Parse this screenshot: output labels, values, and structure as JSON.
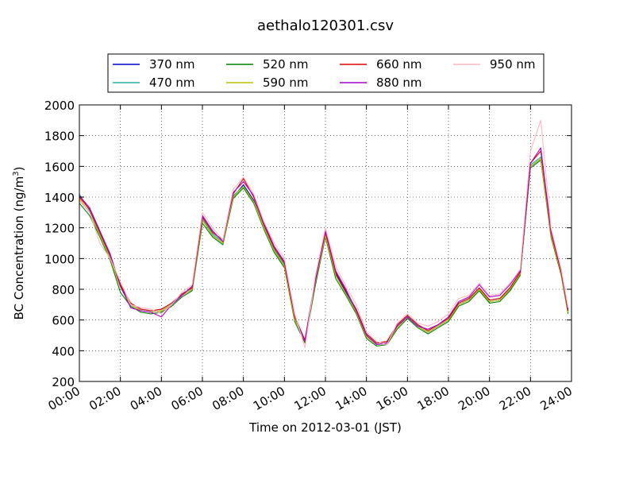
{
  "chart_data": {
    "type": "line",
    "title": "aethalo120301.csv",
    "xlabel": "Time on 2012-03-01 (JST)",
    "ylabel": "BC Concentration (ng/m",
    "ylabel_sup": "3",
    "ylabel_close": ")",
    "xlim": [
      "00:00",
      "24:00"
    ],
    "ylim": [
      200,
      2000
    ],
    "x_ticks": [
      "00:00",
      "02:00",
      "04:00",
      "06:00",
      "08:00",
      "10:00",
      "12:00",
      "14:00",
      "16:00",
      "18:00",
      "20:00",
      "22:00",
      "24:00"
    ],
    "y_ticks": [
      200,
      400,
      600,
      800,
      1000,
      1200,
      1400,
      1600,
      1800,
      2000
    ],
    "grid": true,
    "legend_position": "top",
    "x": [
      "00:00",
      "00:30",
      "01:00",
      "01:30",
      "02:00",
      "02:30",
      "03:00",
      "03:30",
      "04:00",
      "04:30",
      "05:00",
      "05:30",
      "06:00",
      "06:30",
      "07:00",
      "07:30",
      "08:00",
      "08:30",
      "09:00",
      "09:30",
      "10:00",
      "10:30",
      "11:00",
      "11:30",
      "12:00",
      "12:30",
      "13:00",
      "13:30",
      "14:00",
      "14:30",
      "15:00",
      "15:30",
      "16:00",
      "16:30",
      "17:00",
      "17:30",
      "18:00",
      "18:30",
      "19:00",
      "19:30",
      "20:00",
      "20:30",
      "21:00",
      "21:30",
      "22:00",
      "22:30",
      "23:00",
      "23:30",
      "23:50"
    ],
    "series": [
      {
        "name": "370 nm",
        "color": "#0000cc",
        "values": [
          1380,
          1300,
          1150,
          1000,
          820,
          700,
          660,
          650,
          660,
          700,
          760,
          800,
          1250,
          1150,
          1100,
          1400,
          1480,
          1380,
          1200,
          1050,
          950,
          600,
          460,
          850,
          1150,
          900,
          780,
          650,
          500,
          440,
          450,
          560,
          620,
          560,
          520,
          560,
          600,
          700,
          730,
          800,
          720,
          730,
          800,
          900,
          1600,
          1650,
          1150,
          900,
          650
        ]
      },
      {
        "name": "470 nm",
        "color": "#20b2aa",
        "values": [
          1420,
          1310,
          1160,
          1010,
          830,
          710,
          670,
          660,
          670,
          710,
          770,
          810,
          1260,
          1160,
          1110,
          1410,
          1470,
          1370,
          1210,
          1060,
          960,
          610,
          470,
          860,
          1160,
          910,
          790,
          660,
          510,
          450,
          460,
          570,
          630,
          570,
          530,
          570,
          610,
          710,
          740,
          810,
          730,
          740,
          810,
          910,
          1610,
          1660,
          1160,
          910,
          660
        ]
      },
      {
        "name": "520 nm",
        "color": "#008000",
        "values": [
          1360,
          1280,
          1140,
          990,
          780,
          690,
          650,
          640,
          650,
          690,
          750,
          790,
          1230,
          1140,
          1090,
          1390,
          1460,
          1360,
          1190,
          1040,
          940,
          590,
          450,
          820,
          1140,
          870,
          760,
          640,
          480,
          430,
          440,
          540,
          610,
          550,
          510,
          550,
          590,
          690,
          720,
          790,
          710,
          720,
          790,
          890,
          1590,
          1640,
          1140,
          890,
          640
        ]
      },
      {
        "name": "590 nm",
        "color": "#bfbf00",
        "values": [
          1390,
          1300,
          1150,
          1000,
          810,
          700,
          660,
          650,
          660,
          700,
          760,
          800,
          1250,
          1150,
          1100,
          1400,
          1470,
          1370,
          1200,
          1050,
          950,
          600,
          460,
          840,
          1150,
          890,
          770,
          650,
          490,
          440,
          450,
          550,
          620,
          560,
          520,
          560,
          600,
          700,
          730,
          800,
          720,
          730,
          800,
          900,
          1600,
          1650,
          1150,
          900,
          650
        ]
      },
      {
        "name": "660 nm",
        "color": "#dd0000",
        "values": [
          1400,
          1320,
          1170,
          1020,
          830,
          710,
          670,
          660,
          670,
          710,
          770,
          810,
          1270,
          1170,
          1120,
          1420,
          1520,
          1400,
          1220,
          1070,
          970,
          620,
          470,
          860,
          1170,
          910,
          790,
          670,
          510,
          450,
          460,
          570,
          630,
          570,
          530,
          570,
          610,
          710,
          740,
          810,
          730,
          740,
          810,
          910,
          1620,
          1700,
          1170,
          910,
          660
        ]
      },
      {
        "name": "880 nm",
        "color": "#aa00cc",
        "values": [
          1410,
          1330,
          1180,
          1030,
          820,
          680,
          660,
          650,
          620,
          700,
          760,
          820,
          1280,
          1180,
          1110,
          1430,
          1500,
          1410,
          1230,
          1080,
          980,
          630,
          460,
          850,
          1180,
          920,
          800,
          660,
          500,
          440,
          450,
          560,
          620,
          560,
          540,
          570,
          620,
          720,
          750,
          830,
          750,
          760,
          830,
          920,
          1620,
          1720,
          1180,
          920,
          670
        ]
      },
      {
        "name": "950 nm",
        "color": "#ffb6c1",
        "values": [
          1380,
          1300,
          1100,
          1000,
          850,
          700,
          680,
          670,
          640,
          700,
          780,
          830,
          1300,
          1200,
          1120,
          1450,
          1530,
          1420,
          1240,
          1100,
          1000,
          640,
          420,
          880,
          1200,
          950,
          820,
          700,
          520,
          460,
          440,
          580,
          640,
          580,
          560,
          590,
          640,
          740,
          760,
          840,
          760,
          770,
          840,
          930,
          1700,
          1900,
          1200,
          930,
          680
        ]
      }
    ]
  }
}
